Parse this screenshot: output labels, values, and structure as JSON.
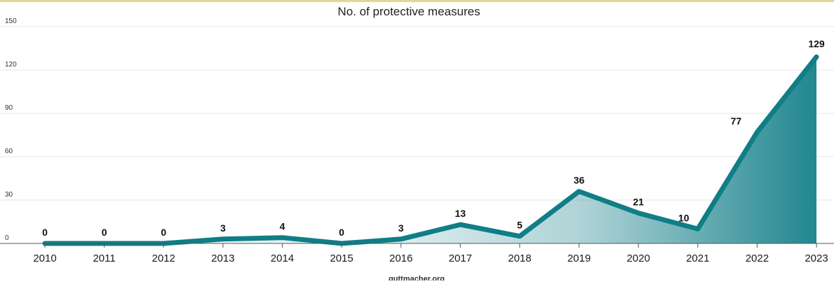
{
  "chart_data": {
    "type": "area",
    "title": "No. of protective measures",
    "source": "guttmacher.org",
    "x": [
      "2010",
      "2011",
      "2012",
      "2013",
      "2014",
      "2015",
      "2016",
      "2017",
      "2018",
      "2019",
      "2020",
      "2021",
      "2022",
      "2023"
    ],
    "values": [
      0,
      0,
      0,
      3,
      4,
      0,
      3,
      13,
      5,
      36,
      21,
      10,
      77,
      129
    ],
    "data_labels": [
      "0",
      "0",
      "0",
      "3",
      "4",
      "0",
      "3",
      "13",
      "5",
      "36",
      "21",
      "10",
      "77",
      "129"
    ],
    "y_ticks": [
      "0",
      "30",
      "60",
      "90",
      "120",
      "150"
    ],
    "ylim": [
      0,
      150
    ],
    "grid": true,
    "colors": {
      "line": "#0f7e86",
      "fill": "#16808a",
      "grid": "#e6e6e6",
      "axis": "#555555"
    }
  }
}
